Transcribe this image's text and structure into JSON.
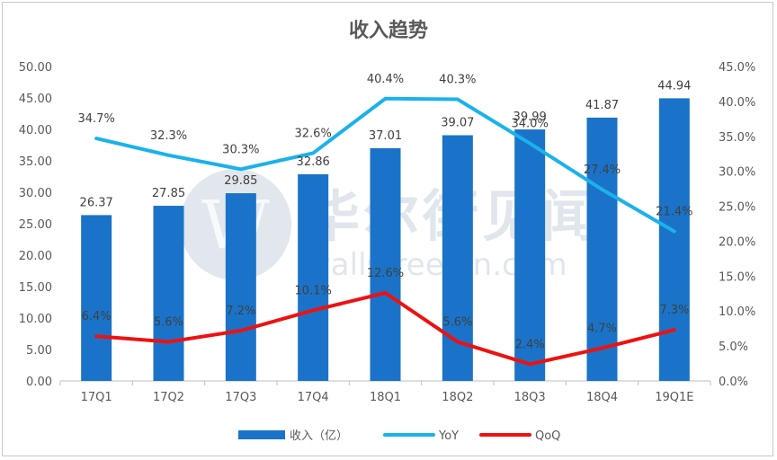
{
  "chart_data": {
    "type": "bar+line",
    "title": "收入趋势",
    "categories": [
      "17Q1",
      "17Q2",
      "17Q3",
      "17Q4",
      "18Q1",
      "18Q2",
      "18Q3",
      "18Q4",
      "19Q1E"
    ],
    "bar_series": {
      "name": "收入（亿）",
      "color": "#1a73c8",
      "values": [
        26.37,
        27.85,
        29.85,
        32.86,
        37.01,
        39.07,
        39.99,
        41.87,
        44.94
      ],
      "labels": [
        "26.37",
        "27.85",
        "29.85",
        "32.86",
        "37.01",
        "39.07",
        "39.99",
        "41.87",
        "44.94"
      ]
    },
    "line_series": [
      {
        "name": "YoY",
        "color": "#1ab2ea",
        "values": [
          34.7,
          32.3,
          30.3,
          32.6,
          40.4,
          40.3,
          34.0,
          27.4,
          21.4
        ],
        "labels": [
          "34.7%",
          "32.3%",
          "30.3%",
          "32.6%",
          "40.4%",
          "40.3%",
          "34.0%",
          "27.4%",
          "21.4%"
        ]
      },
      {
        "name": "QoQ",
        "color": "#ee1111",
        "values": [
          6.4,
          5.6,
          7.2,
          10.1,
          12.6,
          5.6,
          2.4,
          4.7,
          7.3
        ],
        "labels": [
          "6.4%",
          "5.6%",
          "7.2%",
          "10.1%",
          "12.6%",
          "5.6%",
          "2.4%",
          "4.7%",
          "7.3%"
        ]
      }
    ],
    "y_left": {
      "min": 0,
      "max": 50,
      "step": 5,
      "tick_labels": [
        "0.00",
        "5.00",
        "10.00",
        "15.00",
        "20.00",
        "25.00",
        "30.00",
        "35.00",
        "40.00",
        "45.00",
        "50.00"
      ]
    },
    "y_right": {
      "min": 0,
      "max": 45,
      "step": 5,
      "tick_labels": [
        "0.0%",
        "5.0%",
        "10.0%",
        "15.0%",
        "20.0%",
        "25.0%",
        "30.0%",
        "35.0%",
        "40.0%",
        "45.0%"
      ]
    },
    "grid": false,
    "legend_position": "bottom"
  },
  "watermark": {
    "text": "华尔街见闻",
    "url": "wallstreetcn.com"
  }
}
